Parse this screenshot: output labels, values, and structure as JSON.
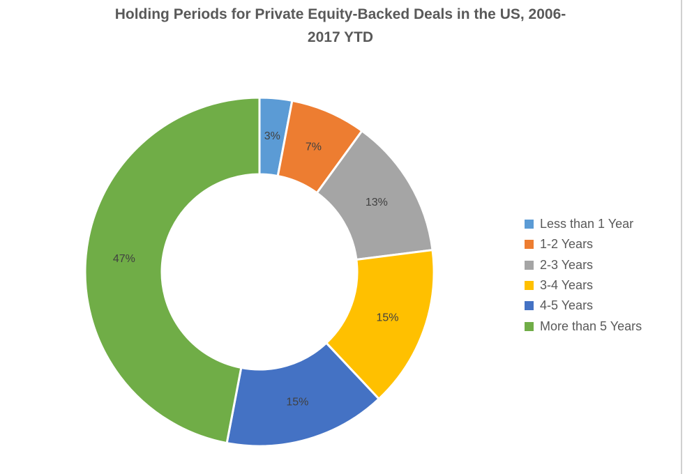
{
  "chart_data": {
    "type": "pie",
    "variant": "donut",
    "title": "Holding Periods for Private Equity-Backed Deals in the US, 2006-2017 YTD",
    "title_lines": [
      "Holding Periods for Private Equity-Backed Deals in the US, 2006-",
      "2017 YTD"
    ],
    "categories": [
      "Less than 1 Year",
      "1-2 Years",
      "2-3 Years",
      "3-4 Years",
      "4-5 Years",
      "More than 5 Years"
    ],
    "values": [
      3,
      7,
      13,
      15,
      15,
      47
    ],
    "data_labels": [
      "3%",
      "7%",
      "13%",
      "15%",
      "15%",
      "47%"
    ],
    "colors": [
      "#5b9bd5",
      "#ed7d31",
      "#a5a5a5",
      "#ffc000",
      "#4472c4",
      "#70ad47"
    ],
    "legend_position": "right",
    "start_angle": "top, clockwise"
  }
}
